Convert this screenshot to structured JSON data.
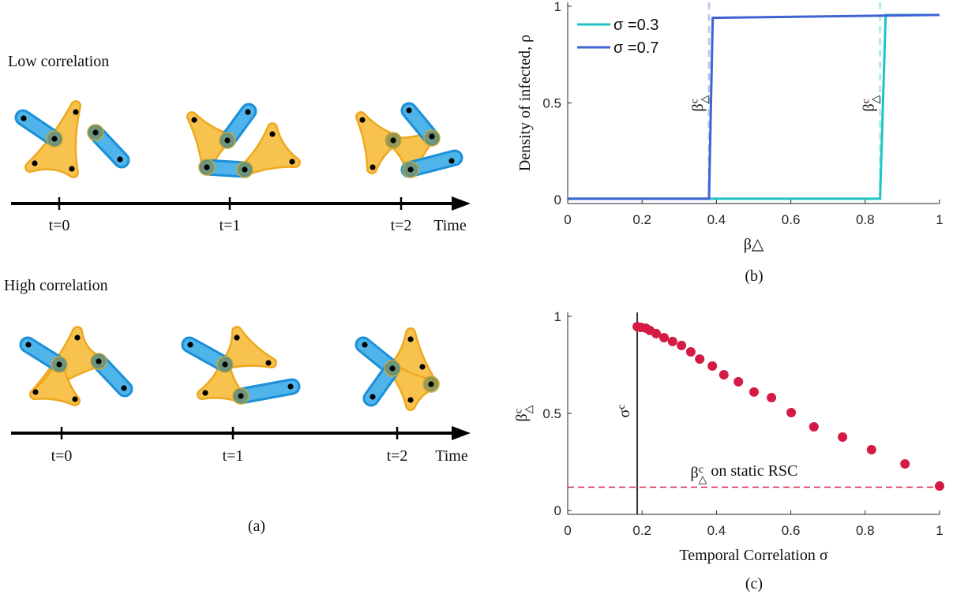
{
  "diagram": {
    "rows": [
      {
        "title": "Low correlation",
        "ticks": [
          "t=0",
          "t=1",
          "t=2"
        ],
        "axis_label": "Time"
      },
      {
        "title": "High correlation",
        "ticks": [
          "t=0",
          "t=1",
          "t=2"
        ],
        "axis_label": "Time"
      }
    ],
    "caption": "(a)"
  },
  "chart_data": [
    {
      "type": "line",
      "caption": "(b)",
      "xlabel": "β△",
      "ylabel": "Density of infected, ρ",
      "xlim": [
        0,
        1
      ],
      "ylim": [
        -0.02,
        1.02
      ],
      "xticks": [
        0,
        0.2,
        0.4,
        0.6,
        0.8,
        1
      ],
      "yticks": [
        0,
        0.5,
        1
      ],
      "legend": "upper left",
      "series": [
        {
          "name": "σ =0.3",
          "color": "#1fc3c6",
          "x": [
            0,
            0.84,
            0.855,
            1
          ],
          "values": [
            0.005,
            0.005,
            0.955,
            0.955
          ]
        },
        {
          "name": "σ =0.7",
          "color": "#3f63d3",
          "x": [
            0,
            0.38,
            0.39,
            1
          ],
          "values": [
            0.005,
            0.005,
            0.94,
            0.955
          ]
        }
      ],
      "annotations": [
        {
          "x": 0.38,
          "color": "#3f63d3",
          "label": {
            "base": "β",
            "sup": "c",
            "sub": "△"
          }
        },
        {
          "x": 0.84,
          "color": "#1fc3c6",
          "label": {
            "base": "β",
            "sup": "c",
            "sub": "△"
          }
        }
      ]
    },
    {
      "type": "scatter",
      "caption": "(c)",
      "xlabel": "Temporal Correlation σ",
      "ylabel": {
        "base": "β",
        "sup": "c",
        "sub": "△"
      },
      "xlim": [
        0,
        1
      ],
      "ylim": [
        -0.02,
        1.02
      ],
      "xticks": [
        0,
        0.2,
        0.4,
        0.6,
        0.8,
        1
      ],
      "yticks": [
        0,
        0.5,
        1
      ],
      "color": "#d41a45",
      "x": [
        0.187,
        0.197,
        0.21,
        0.221,
        0.238,
        0.259,
        0.282,
        0.306,
        0.331,
        0.355,
        0.389,
        0.42,
        0.459,
        0.501,
        0.548,
        0.601,
        0.662,
        0.739,
        0.817,
        0.907,
        1.0
      ],
      "values": [
        0.947,
        0.943,
        0.939,
        0.927,
        0.911,
        0.89,
        0.87,
        0.85,
        0.817,
        0.78,
        0.744,
        0.699,
        0.663,
        0.61,
        0.581,
        0.504,
        0.431,
        0.378,
        0.313,
        0.24,
        0.126
      ],
      "vline": {
        "x": 0.187,
        "label": {
          "base": "σ",
          "sup": "c"
        }
      },
      "hline": {
        "y": 0.12,
        "label": {
          "base": "β",
          "sup": "c",
          "sub": "△",
          "rest": " on static RSC"
        }
      }
    }
  ]
}
